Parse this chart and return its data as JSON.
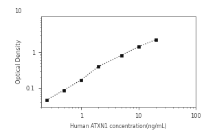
{
  "x": [
    0.25,
    0.5,
    1.0,
    2.0,
    5.0,
    10.0,
    20.0
  ],
  "y": [
    0.047,
    0.088,
    0.17,
    0.4,
    0.82,
    1.42,
    2.25
  ],
  "xlabel": "Human ATXN1 concentration(ng/mL)",
  "ylabel": "Optical Density",
  "xlim": [
    0.2,
    100
  ],
  "ylim": [
    0.03,
    10
  ],
  "yticks": [
    0.1,
    1
  ],
  "ytick_labels": [
    "0.1",
    "1"
  ],
  "xticks": [
    1,
    10,
    100
  ],
  "xtick_labels": [
    "1",
    "10",
    "100"
  ],
  "line_color": "#333333",
  "marker_color": "#111111",
  "line_style": "dotted",
  "marker": "s",
  "marker_size": 3.5,
  "background_color": "#ffffff",
  "xlabel_fontsize": 5.5,
  "ylabel_fontsize": 6,
  "tick_fontsize": 6,
  "top_label": "10",
  "figsize": [
    3.0,
    2.0
  ],
  "dpi": 100
}
